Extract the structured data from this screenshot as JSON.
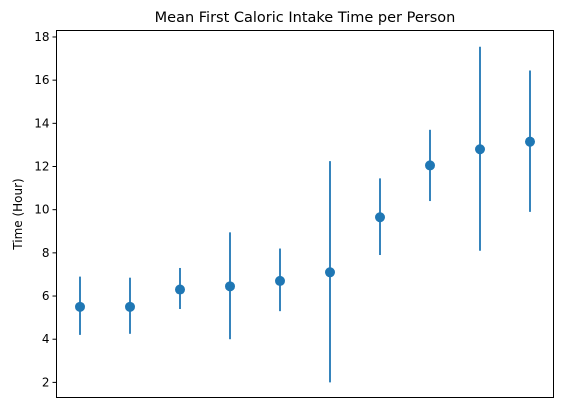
{
  "chart_data": {
    "type": "scatter",
    "title": "Mean First Caloric Intake Time per Person",
    "xlabel": "",
    "ylabel": "Time (Hour)",
    "ylim": [
      1.3,
      18.3
    ],
    "yticks": [
      2,
      4,
      6,
      8,
      10,
      12,
      14,
      16,
      18
    ],
    "grid": false,
    "legend": "none",
    "x_ticks_visible": false,
    "marker_color": "#1f77b4",
    "errorbar_color": "#1f77b4",
    "points": [
      {
        "mean": 5.5,
        "low": 4.2,
        "high": 6.9
      },
      {
        "mean": 5.5,
        "low": 4.25,
        "high": 6.85
      },
      {
        "mean": 6.3,
        "low": 5.4,
        "high": 7.3
      },
      {
        "mean": 6.45,
        "low": 4.0,
        "high": 8.95
      },
      {
        "mean": 6.7,
        "low": 5.3,
        "high": 8.2
      },
      {
        "mean": 7.1,
        "low": 2.0,
        "high": 12.25
      },
      {
        "mean": 9.65,
        "low": 7.9,
        "high": 11.45
      },
      {
        "mean": 12.05,
        "low": 10.4,
        "high": 13.7
      },
      {
        "mean": 12.8,
        "low": 8.1,
        "high": 17.55
      },
      {
        "mean": 13.15,
        "low": 9.9,
        "high": 16.45
      }
    ]
  }
}
